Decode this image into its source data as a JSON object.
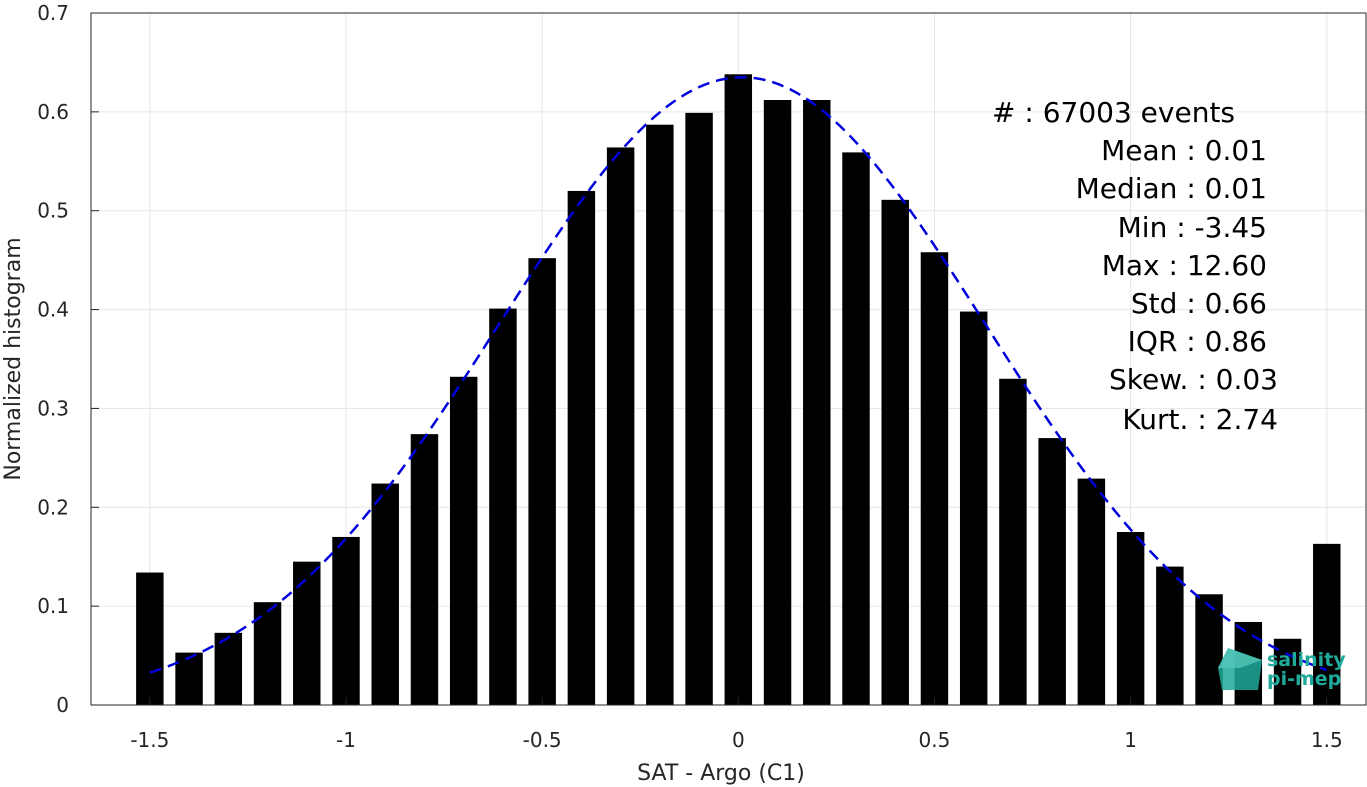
{
  "chart_data": {
    "type": "bar",
    "xlabel": "SAT - Argo (C1)",
    "ylabel": "Normalized histogram",
    "xlim": [
      -1.65,
      1.6
    ],
    "ylim": [
      0,
      0.7
    ],
    "xticks": [
      -1.5,
      -1,
      -0.5,
      0,
      0.5,
      1,
      1.5
    ],
    "xtick_labels": [
      "-1.5",
      "-1",
      "-0.5",
      "0",
      "0.5",
      "1",
      "1.5"
    ],
    "yticks": [
      0,
      0.1,
      0.2,
      0.3,
      0.4,
      0.5,
      0.6,
      0.7
    ],
    "ytick_labels": [
      "0",
      "0.1",
      "0.2",
      "0.3",
      "0.4",
      "0.5",
      "0.6",
      "0.7"
    ],
    "grid": true,
    "bar_color": "#000000",
    "fit_color": "#0000dd",
    "bars": {
      "x": [
        -1.5,
        -1.4,
        -1.3,
        -1.2,
        -1.1,
        -1.0,
        -0.9,
        -0.8,
        -0.7,
        -0.6,
        -0.5,
        -0.4,
        -0.3,
        -0.2,
        -0.1,
        0.0,
        0.1,
        0.2,
        0.3,
        0.4,
        0.5,
        0.6,
        0.7,
        0.8,
        0.9,
        1.0,
        1.1,
        1.2,
        1.3,
        1.4,
        1.5
      ],
      "values": [
        0.134,
        0.053,
        0.073,
        0.104,
        0.145,
        0.17,
        0.224,
        0.274,
        0.332,
        0.401,
        0.452,
        0.52,
        0.564,
        0.587,
        0.599,
        0.638,
        0.612,
        0.612,
        0.559,
        0.511,
        0.458,
        0.398,
        0.33,
        0.27,
        0.229,
        0.175,
        0.14,
        0.112,
        0.084,
        0.067,
        0.163
      ],
      "width": 0.07
    },
    "fit_curve": {
      "name": "",
      "style": "dashed",
      "mean": 0.01,
      "std": 0.62,
      "peak": 0.635,
      "x_range": [
        -1.5,
        1.5
      ]
    },
    "stats_box": {
      "lines": [
        "#  : 67003 events",
        "Mean : 0.01",
        "Median : 0.01",
        "Min : -3.45",
        "Max : 12.60",
        "Std : 0.66",
        "IQR : 0.86",
        "Skew. : 0.03",
        "Kurt. : 2.74"
      ]
    },
    "logo": {
      "line1": "salinity",
      "line2": "pi-mep",
      "color": "#1fa99a"
    }
  }
}
